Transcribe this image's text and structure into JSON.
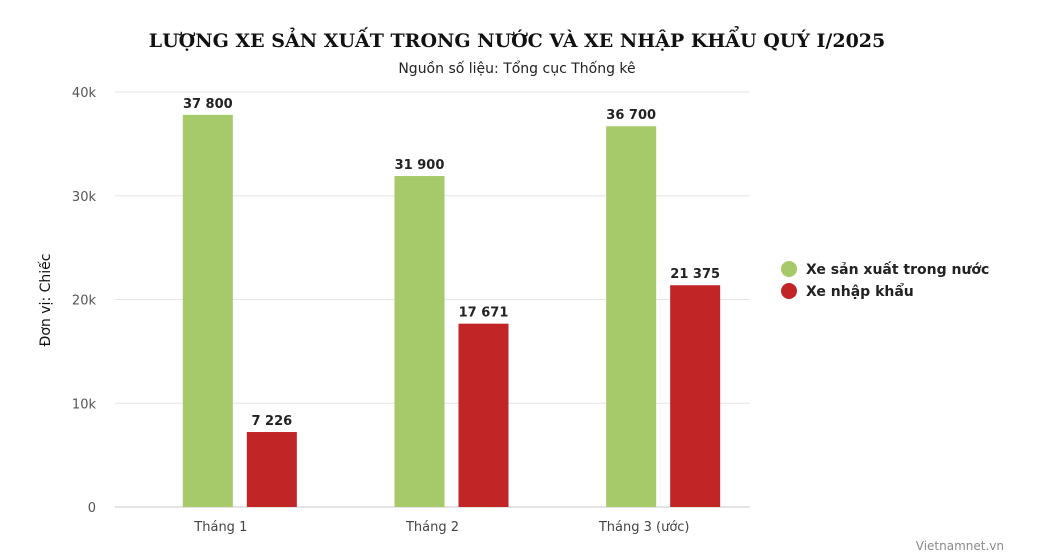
{
  "chart_data": {
    "type": "bar",
    "title": "LƯỢNG XE SẢN XUẤT TRONG NƯỚC VÀ XE NHẬP KHẨU QUÝ I/2025",
    "subtitle": "Nguồn số liệu: Tổng cục Thống kê",
    "xlabel": "",
    "ylabel": "Đơn vị: Chiếc",
    "categories": [
      "Tháng 1",
      "Tháng 2",
      "Tháng 3 (ước)"
    ],
    "series": [
      {
        "name": "Xe sản xuất trong nước",
        "color": "#a6ca6a",
        "values": [
          37800,
          31900,
          36700
        ],
        "labels": [
          "37 800",
          "31 900",
          "36 700"
        ]
      },
      {
        "name": "Xe nhập khẩu",
        "color": "#c22526",
        "values": [
          7226,
          17671,
          21375
        ],
        "labels": [
          "7 226",
          "17 671",
          "21 375"
        ]
      }
    ],
    "ylim": [
      0,
      40000
    ],
    "yticks": [
      0,
      10000,
      20000,
      30000,
      40000
    ],
    "ytick_labels": [
      "0",
      "10k",
      "20k",
      "30k",
      "40k"
    ],
    "grid": true,
    "legend_position": "right"
  },
  "credit": "Vietnamnet.vn"
}
